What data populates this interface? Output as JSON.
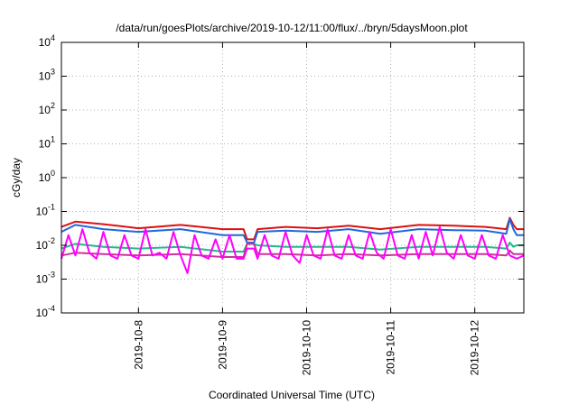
{
  "chart_data": {
    "type": "line",
    "title": "/data/run/goesPlots/archive/2019-10-12/11:00/flux/../bryn/5daysMoon.plot",
    "xlabel": "Coordinated Universal Time (UTC)",
    "ylabel": "cGy/day",
    "yscale": "log",
    "ylim": [
      0.0001,
      10000
    ],
    "xlim": [
      "2019-10-07T02:00",
      "2019-10-12T14:00"
    ],
    "grid": true,
    "legend": "none",
    "y_ticks": [
      {
        "base": "10",
        "exp": "4",
        "value": 10000
      },
      {
        "base": "10",
        "exp": "3",
        "value": 1000
      },
      {
        "base": "10",
        "exp": "2",
        "value": 100
      },
      {
        "base": "10",
        "exp": "1",
        "value": 10
      },
      {
        "base": "10",
        "exp": "0",
        "value": 1
      },
      {
        "base": "10",
        "exp": "-1",
        "value": 0.1
      },
      {
        "base": "10",
        "exp": "-2",
        "value": 0.01
      },
      {
        "base": "10",
        "exp": "-3",
        "value": 0.001
      },
      {
        "base": "10",
        "exp": "-4",
        "value": 0.0001
      }
    ],
    "x_ticks": [
      {
        "label": "2019-10-8",
        "date": "2019-10-08T00:00"
      },
      {
        "label": "2019-10-9",
        "date": "2019-10-09T00:00"
      },
      {
        "label": "2019-10-10",
        "date": "2019-10-10T00:00"
      },
      {
        "label": "2019-10-11",
        "date": "2019-10-11T00:00"
      },
      {
        "label": "2019-10-12",
        "date": "2019-10-12T00:00"
      }
    ],
    "series": [
      {
        "color": "#dd1111",
        "x": [
          "2019-10-07T02:00",
          "2019-10-07T06:00",
          "2019-10-07T14:00",
          "2019-10-08T00:00",
          "2019-10-08T12:00",
          "2019-10-09T00:00",
          "2019-10-09T06:00",
          "2019-10-09T07:00",
          "2019-10-09T09:00",
          "2019-10-09T10:00",
          "2019-10-09T18:00",
          "2019-10-10T03:00",
          "2019-10-10T12:00",
          "2019-10-10T21:00",
          "2019-10-11T08:00",
          "2019-10-11T18:00",
          "2019-10-12T03:00",
          "2019-10-12T09:00",
          "2019-10-12T10:00",
          "2019-10-12T11:00",
          "2019-10-12T12:00",
          "2019-10-12T14:00"
        ],
        "values": [
          0.035,
          0.05,
          0.042,
          0.032,
          0.04,
          0.03,
          0.03,
          0.015,
          0.015,
          0.03,
          0.035,
          0.032,
          0.038,
          0.03,
          0.04,
          0.038,
          0.035,
          0.03,
          0.065,
          0.04,
          0.03,
          0.03
        ]
      },
      {
        "color": "#2266dd",
        "x": [
          "2019-10-07T02:00",
          "2019-10-07T06:00",
          "2019-10-07T14:00",
          "2019-10-08T00:00",
          "2019-10-08T12:00",
          "2019-10-09T00:00",
          "2019-10-09T06:00",
          "2019-10-09T07:00",
          "2019-10-09T09:00",
          "2019-10-09T10:00",
          "2019-10-09T18:00",
          "2019-10-10T03:00",
          "2019-10-10T12:00",
          "2019-10-10T21:00",
          "2019-10-11T08:00",
          "2019-10-11T18:00",
          "2019-10-12T03:00",
          "2019-10-12T09:00",
          "2019-10-12T10:00",
          "2019-10-12T11:00",
          "2019-10-12T12:00",
          "2019-10-12T14:00"
        ],
        "values": [
          0.025,
          0.04,
          0.03,
          0.025,
          0.03,
          0.02,
          0.02,
          0.012,
          0.012,
          0.025,
          0.027,
          0.025,
          0.03,
          0.022,
          0.03,
          0.028,
          0.027,
          0.022,
          0.06,
          0.03,
          0.02,
          0.02
        ]
      },
      {
        "color": "#22bb88",
        "x": [
          "2019-10-07T02:00",
          "2019-10-07T06:00",
          "2019-10-07T14:00",
          "2019-10-08T00:00",
          "2019-10-08T12:00",
          "2019-10-09T00:00",
          "2019-10-09T06:00",
          "2019-10-09T07:00",
          "2019-10-09T09:00",
          "2019-10-09T10:00",
          "2019-10-09T18:00",
          "2019-10-10T03:00",
          "2019-10-10T12:00",
          "2019-10-10T21:00",
          "2019-10-11T08:00",
          "2019-10-11T18:00",
          "2019-10-12T03:00",
          "2019-10-12T09:00",
          "2019-10-12T10:00",
          "2019-10-12T11:00",
          "2019-10-12T12:00",
          "2019-10-12T14:00"
        ],
        "values": [
          0.008,
          0.011,
          0.009,
          0.008,
          0.009,
          0.0065,
          0.0065,
          0.011,
          0.011,
          0.01,
          0.009,
          0.009,
          0.009,
          0.0075,
          0.009,
          0.009,
          0.009,
          0.008,
          0.012,
          0.009,
          0.01,
          0.01
        ]
      },
      {
        "color": "#cc3399",
        "x": [
          "2019-10-07T02:00",
          "2019-10-07T06:00",
          "2019-10-07T14:00",
          "2019-10-08T00:00",
          "2019-10-08T12:00",
          "2019-10-09T00:00",
          "2019-10-09T06:00",
          "2019-10-09T07:00",
          "2019-10-09T09:00",
          "2019-10-09T10:00",
          "2019-10-09T18:00",
          "2019-10-10T03:00",
          "2019-10-10T12:00",
          "2019-10-10T21:00",
          "2019-10-11T08:00",
          "2019-10-11T18:00",
          "2019-10-12T03:00",
          "2019-10-12T09:00",
          "2019-10-12T10:00",
          "2019-10-12T11:00",
          "2019-10-12T12:00",
          "2019-10-12T14:00"
        ],
        "values": [
          0.005,
          0.006,
          0.0055,
          0.005,
          0.0055,
          0.0045,
          0.0045,
          0.011,
          0.011,
          0.0055,
          0.0055,
          0.005,
          0.0055,
          0.005,
          0.0055,
          0.0055,
          0.0055,
          0.005,
          0.007,
          0.0055,
          0.0055,
          0.0055
        ]
      },
      {
        "color": "#ff00ff",
        "x": [
          "2019-10-07T02:00",
          "2019-10-07T04:00",
          "2019-10-07T06:00",
          "2019-10-07T08:00",
          "2019-10-07T10:00",
          "2019-10-07T12:00",
          "2019-10-07T14:00",
          "2019-10-07T16:00",
          "2019-10-07T18:00",
          "2019-10-07T20:00",
          "2019-10-07T22:00",
          "2019-10-08T00:00",
          "2019-10-08T02:00",
          "2019-10-08T04:00",
          "2019-10-08T06:00",
          "2019-10-08T08:00",
          "2019-10-08T10:00",
          "2019-10-08T12:00",
          "2019-10-08T14:00",
          "2019-10-08T16:00",
          "2019-10-08T18:00",
          "2019-10-08T20:00",
          "2019-10-08T22:00",
          "2019-10-09T00:00",
          "2019-10-09T02:00",
          "2019-10-09T04:00",
          "2019-10-09T06:00",
          "2019-10-09T07:00",
          "2019-10-09T09:00",
          "2019-10-09T10:00",
          "2019-10-09T12:00",
          "2019-10-09T14:00",
          "2019-10-09T16:00",
          "2019-10-09T18:00",
          "2019-10-09T20:00",
          "2019-10-09T22:00",
          "2019-10-10T00:00",
          "2019-10-10T02:00",
          "2019-10-10T04:00",
          "2019-10-10T06:00",
          "2019-10-10T08:00",
          "2019-10-10T10:00",
          "2019-10-10T12:00",
          "2019-10-10T14:00",
          "2019-10-10T16:00",
          "2019-10-10T18:00",
          "2019-10-10T20:00",
          "2019-10-10T22:00",
          "2019-10-11T00:00",
          "2019-10-11T02:00",
          "2019-10-11T04:00",
          "2019-10-11T06:00",
          "2019-10-11T08:00",
          "2019-10-11T10:00",
          "2019-10-11T12:00",
          "2019-10-11T14:00",
          "2019-10-11T16:00",
          "2019-10-11T18:00",
          "2019-10-11T20:00",
          "2019-10-11T22:00",
          "2019-10-12T00:00",
          "2019-10-12T02:00",
          "2019-10-12T04:00",
          "2019-10-12T06:00",
          "2019-10-12T08:00",
          "2019-10-12T10:00",
          "2019-10-12T12:00",
          "2019-10-12T14:00"
        ],
        "values": [
          0.004,
          0.02,
          0.005,
          0.03,
          0.006,
          0.004,
          0.025,
          0.005,
          0.004,
          0.02,
          0.005,
          0.004,
          0.03,
          0.005,
          0.006,
          0.004,
          0.025,
          0.005,
          0.0015,
          0.02,
          0.005,
          0.004,
          0.015,
          0.004,
          0.02,
          0.004,
          0.004,
          0.008,
          0.008,
          0.004,
          0.02,
          0.005,
          0.004,
          0.025,
          0.005,
          0.003,
          0.02,
          0.005,
          0.004,
          0.03,
          0.005,
          0.004,
          0.02,
          0.005,
          0.004,
          0.025,
          0.006,
          0.004,
          0.03,
          0.005,
          0.004,
          0.02,
          0.004,
          0.025,
          0.005,
          0.035,
          0.006,
          0.004,
          0.02,
          0.005,
          0.004,
          0.02,
          0.005,
          0.004,
          0.02,
          0.005,
          0.004,
          0.005
        ]
      }
    ]
  }
}
